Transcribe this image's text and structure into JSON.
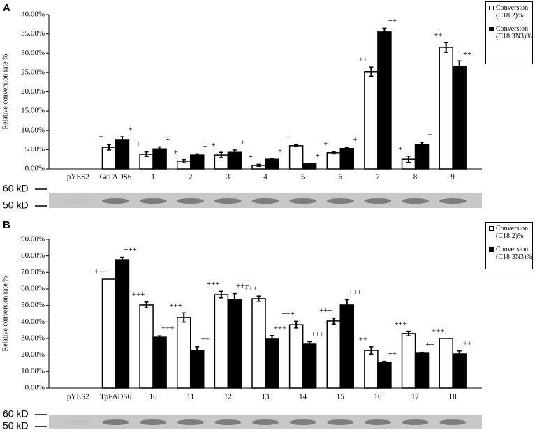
{
  "chart_data": [
    {
      "type": "bar",
      "panel_label": "A",
      "y_label": "Relative conversion rate %",
      "categories": [
        "pYES2",
        "GcFADS6",
        "1",
        "2",
        "3",
        "4",
        "5",
        "6",
        "7",
        "8",
        "9"
      ],
      "series": [
        {
          "name": "Conversion (C18:2)%",
          "color": "#ffffff",
          "values": [
            0,
            5.6,
            3.8,
            2.0,
            3.6,
            0.9,
            6.0,
            4.2,
            25.2,
            2.5,
            31.5
          ],
          "errors": [
            0,
            0.7,
            0.6,
            0.4,
            0.7,
            0.3,
            0.2,
            0.3,
            1.2,
            0.8,
            1.3
          ],
          "annotations": [
            null,
            "+",
            "+",
            "+",
            "+",
            "+",
            "+",
            "+",
            "++",
            "+",
            "++"
          ]
        },
        {
          "name": "Conversion (C18:3N3)%",
          "color": "#000000",
          "values": [
            0,
            7.6,
            5.2,
            3.6,
            4.3,
            2.5,
            1.3,
            5.3,
            35.5,
            6.3,
            26.6
          ],
          "errors": [
            0,
            0.7,
            0.5,
            0.3,
            0.6,
            0.2,
            0.2,
            0.3,
            1.0,
            0.6,
            1.4
          ],
          "annotations": [
            null,
            "+",
            "+",
            "+",
            "+",
            "+",
            "+",
            "+",
            "++",
            "+",
            "++"
          ]
        }
      ],
      "ylim": [
        0,
        40
      ],
      "yticks": [
        {
          "value": 0,
          "label": "0.00%"
        },
        {
          "value": 5,
          "label": "5.00%"
        },
        {
          "value": 10,
          "label": "10.00%"
        },
        {
          "value": 15,
          "label": "15.00%"
        },
        {
          "value": 20,
          "label": "20.00%"
        },
        {
          "value": 25,
          "label": "25.00%"
        },
        {
          "value": 30,
          "label": "30.00%"
        },
        {
          "value": 35,
          "label": "35.00%"
        },
        {
          "value": 40,
          "label": "40.00%"
        }
      ],
      "legend": "upper right",
      "grid": false,
      "blot_labels": [
        "60 kD",
        "50 kD"
      ]
    },
    {
      "type": "bar",
      "panel_label": "B",
      "y_label": "Relative conversion rate %",
      "categories": [
        "pYES2",
        "TpFADS6",
        "10",
        "11",
        "12",
        "13",
        "14",
        "15",
        "16",
        "17",
        "18"
      ],
      "series": [
        {
          "name": "Conversion (C18:2)%",
          "color": "#ffffff",
          "values": [
            0,
            65.9,
            50.3,
            42.7,
            56.6,
            54.1,
            38.4,
            40.6,
            22.8,
            33.0,
            30.0
          ],
          "errors": [
            0,
            0,
            1.8,
            2.8,
            2.0,
            1.6,
            2.0,
            1.8,
            2.2,
            1.4,
            0
          ],
          "annotations": [
            null,
            "+++",
            "+++",
            "+++",
            "+++",
            "+++",
            "+++",
            "+++",
            "++",
            "+++",
            "+++"
          ]
        },
        {
          "name": "Conversion (C18:3N3)%",
          "color": "#000000",
          "values": [
            0,
            77.7,
            30.8,
            22.8,
            53.7,
            29.6,
            26.6,
            50.3,
            15.6,
            21.1,
            20.7
          ],
          "errors": [
            0,
            1.5,
            0.8,
            2.2,
            3.5,
            2.2,
            1.5,
            3.2,
            0.6,
            0.6,
            1.8
          ],
          "annotations": [
            null,
            "+++",
            "+++",
            "++",
            "+++",
            "+++",
            "+++",
            "+++",
            "++",
            "++",
            "++"
          ]
        }
      ],
      "ylim": [
        0,
        90
      ],
      "yticks": [
        {
          "value": 0,
          "label": "0.00%"
        },
        {
          "value": 10,
          "label": "10.00%"
        },
        {
          "value": 20,
          "label": "20.00%"
        },
        {
          "value": 30,
          "label": "30.00%"
        },
        {
          "value": 40,
          "label": "40.00%"
        },
        {
          "value": 50,
          "label": "50.00%"
        },
        {
          "value": 60,
          "label": "60.00%"
        },
        {
          "value": 70,
          "label": "70.00%"
        },
        {
          "value": 80,
          "label": "80.00%"
        },
        {
          "value": 90,
          "label": "90.00%"
        }
      ],
      "legend": "upper right",
      "grid": false,
      "blot_labels": [
        "60 kD",
        "50 kD"
      ]
    }
  ]
}
